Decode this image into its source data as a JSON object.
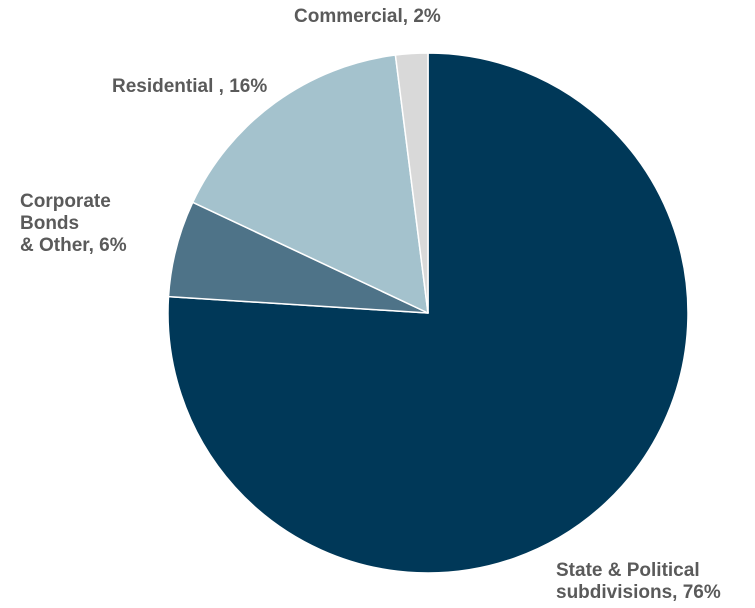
{
  "chart_data": {
    "type": "pie",
    "start_angle_deg": 0,
    "direction": "clockwise",
    "slices": [
      {
        "name": "State & Political subdivisions",
        "value": 76,
        "color": "#003858",
        "label_lines": [
          "State & Political",
          "subdivisions, 76%"
        ]
      },
      {
        "name": "Corporate Bonds & Other",
        "value": 6,
        "color": "#4e7388",
        "label_lines": [
          "Corporate",
          "Bonds",
          "& Other, 6%"
        ]
      },
      {
        "name": "Residential",
        "value": 16,
        "color": "#a4c2cd",
        "label_lines": [
          "Residential , 16%"
        ]
      },
      {
        "name": "Commercial",
        "value": 2,
        "color": "#d9d9d9",
        "label_lines": [
          "Commercial, 2%"
        ]
      }
    ]
  }
}
